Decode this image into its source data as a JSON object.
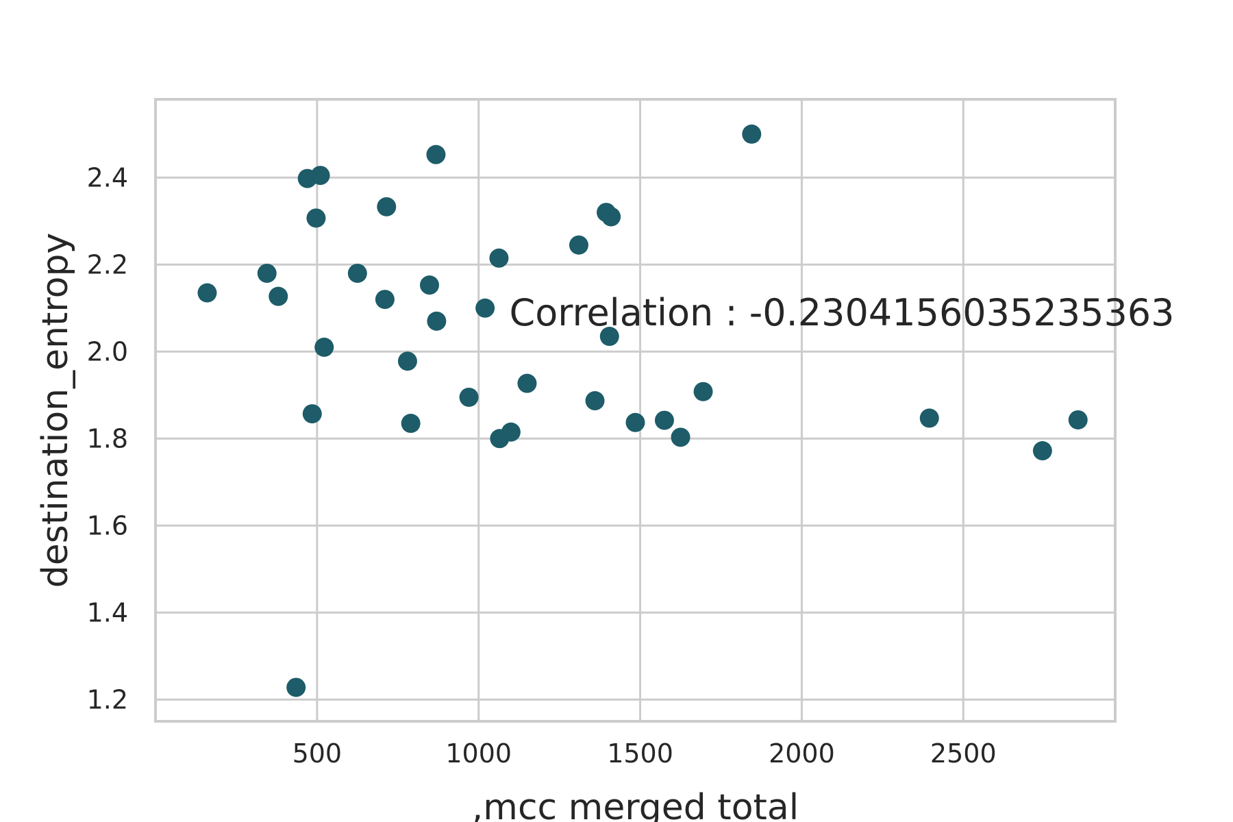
{
  "chart_data": {
    "type": "scatter",
    "title": "",
    "xlabel": ",mcc  merged  total",
    "ylabel": "destination_entropy",
    "xlim": [
      0,
      2970
    ],
    "ylim": [
      1.15,
      2.58
    ],
    "xticks": [
      500,
      1000,
      1500,
      2000,
      2500
    ],
    "xtick_labels": [
      "500",
      "1000",
      "1500",
      "2000",
      "2500"
    ],
    "yticks": [
      1.2,
      1.4,
      1.6,
      1.8,
      2.0,
      2.2,
      2.4
    ],
    "ytick_labels": [
      "1.2",
      "1.4",
      "1.6",
      "1.8",
      "2.0",
      "2.2",
      "2.4"
    ],
    "grid": true,
    "marker_color": "#1d5c68",
    "annotation": {
      "text": "Correlation : -0.2304156035235363",
      "x": 1095,
      "y": 2.06
    },
    "series": [
      {
        "x": [
          160,
          345,
          380,
          435,
          470,
          485,
          497,
          510,
          522,
          625,
          710,
          715,
          780,
          790,
          848,
          868,
          870,
          970,
          1020,
          1063,
          1065,
          1100,
          1150,
          1310,
          1360,
          1395,
          1405,
          1410,
          1485,
          1575,
          1625,
          1695,
          1845,
          2395,
          2745,
          2855
        ],
        "y": [
          2.135,
          2.18,
          2.127,
          1.228,
          2.398,
          1.857,
          2.307,
          2.405,
          2.01,
          2.18,
          2.12,
          2.333,
          1.978,
          1.835,
          2.153,
          2.453,
          2.07,
          1.895,
          2.1,
          2.215,
          1.8,
          1.815,
          1.927,
          2.245,
          1.887,
          2.32,
          2.035,
          2.31,
          1.837,
          1.842,
          1.803,
          1.908,
          2.5,
          1.847,
          1.772,
          1.843
        ]
      }
    ]
  }
}
